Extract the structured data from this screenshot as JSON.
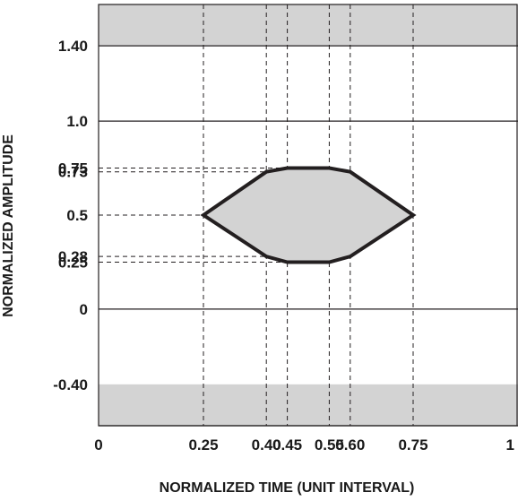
{
  "chart_data": {
    "type": "area",
    "title": "",
    "xlabel": "NORMALIZED TIME (UNIT INTERVAL)",
    "ylabel": "NORMALIZED AMPLITUDE",
    "xlim": [
      0,
      1
    ],
    "ylim": [
      -0.62,
      1.62
    ],
    "x_ticks": [
      {
        "value": 0,
        "label": "0"
      },
      {
        "value": 0.25,
        "label": "0.25"
      },
      {
        "value": 0.4,
        "label": "0.40"
      },
      {
        "value": 0.45,
        "label": "0.45"
      },
      {
        "value": 0.55,
        "label": "0.55"
      },
      {
        "value": 0.6,
        "label": "0.60"
      },
      {
        "value": 0.75,
        "label": "0.75"
      },
      {
        "value": 1,
        "label": "1"
      }
    ],
    "y_ticks": [
      {
        "value": 1.4,
        "label": "1.40"
      },
      {
        "value": 1.0,
        "label": "1.0"
      },
      {
        "value": 0.75,
        "label": "0.75"
      },
      {
        "value": 0.73,
        "label": "0.73"
      },
      {
        "value": 0.5,
        "label": "0.5"
      },
      {
        "value": 0.28,
        "label": "0.28"
      },
      {
        "value": 0.25,
        "label": "0.25"
      },
      {
        "value": 0,
        "label": "0"
      },
      {
        "value": -0.4,
        "label": "-0.40"
      }
    ],
    "eye_mask": {
      "x": [
        0.25,
        0.4,
        0.45,
        0.55,
        0.6,
        0.75,
        0.6,
        0.55,
        0.45,
        0.4
      ],
      "y": [
        0.5,
        0.73,
        0.75,
        0.75,
        0.73,
        0.5,
        0.28,
        0.25,
        0.25,
        0.28
      ]
    },
    "upper_limit_region": {
      "from": 1.4,
      "to": 1.62
    },
    "lower_limit_region": {
      "from": -0.62,
      "to": -0.4
    },
    "solid_gridlines_y": [
      1.0,
      0
    ],
    "dashed_gridlines_x": [
      0.25,
      0.4,
      0.45,
      0.55,
      0.6,
      0.75
    ],
    "grid": true,
    "colors": {
      "mask_fill": "#d3d3d3",
      "stroke": "#231f20",
      "background": "#ffffff"
    }
  }
}
